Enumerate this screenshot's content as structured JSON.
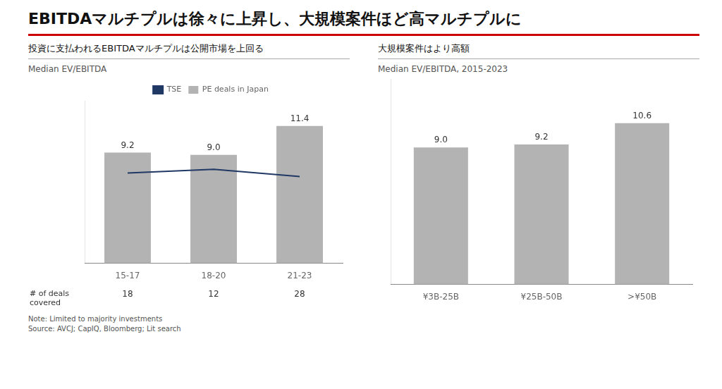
{
  "title": "EBITDAマルチプルは徐々に上昇し、大規模案件ほど高マルチプルに",
  "note": "Note: Limited to majority investments\nSource: AVCJ; CapIQ, Bloomberg; Lit search",
  "chart_data": [
    {
      "type": "bar",
      "subtitle": "投資に支払われるEBITDAマルチプルは公開市場を上回る",
      "ylabel": "Median EV/EBITDA",
      "categories": [
        "15-17",
        "18-20",
        "21-23"
      ],
      "series": [
        {
          "name": "PE deals in Japan",
          "type": "bar",
          "color": "#b3b3b3",
          "values": [
            9.2,
            9.0,
            11.4
          ],
          "data_labels": true,
          "value_labels": [
            "9.2",
            "9.0",
            "11.4"
          ]
        },
        {
          "name": "TSE",
          "type": "line",
          "color": "#1f3864",
          "values": [
            7.5,
            7.8,
            7.2
          ],
          "marker": "none"
        }
      ],
      "ylim": [
        0,
        13.5
      ],
      "tick_labels": "x",
      "grid": false,
      "legend": "top",
      "deals_label": "# of deals\ncovered",
      "deals_covered": [
        18,
        12,
        28
      ]
    },
    {
      "type": "bar",
      "subtitle": "大規模案件はより高額",
      "ylabel": "Median EV/EBITDA, 2015-2023",
      "categories": [
        "¥3B-25B",
        "¥25B-50B",
        ">¥50B"
      ],
      "values": [
        9.0,
        9.2,
        10.6
      ],
      "value_labels": [
        "9.0",
        "9.2",
        "10.6"
      ],
      "data_labels": true,
      "color": "#b3b3b3",
      "ylim": [
        0,
        13.5
      ],
      "tick_labels": "x",
      "grid": false
    }
  ]
}
